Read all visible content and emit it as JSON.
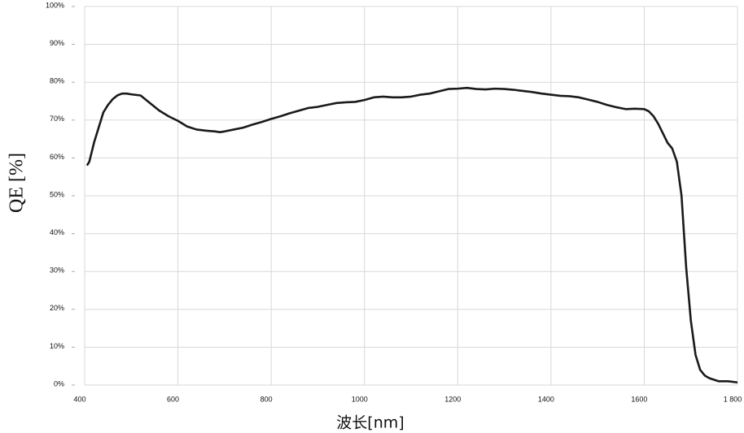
{
  "chart_data": {
    "type": "line",
    "x_label": "波长[nm]",
    "y_label": "QE [%]",
    "xlim": [
      400,
      1800
    ],
    "xticks": [
      400,
      600,
      800,
      1000,
      1200,
      1400,
      1600,
      {
        "value": 1800,
        "label": "1 800"
      }
    ],
    "ylim": [
      0,
      100
    ],
    "yticks": [
      {
        "value": 0,
        "label": "0%"
      },
      {
        "value": 10,
        "label": "10%"
      },
      {
        "value": 20,
        "label": "20%"
      },
      {
        "value": 30,
        "label": "30%"
      },
      {
        "value": 40,
        "label": "40%"
      },
      {
        "value": 50,
        "label": "50%"
      },
      {
        "value": 60,
        "label": "60%"
      },
      {
        "value": 70,
        "label": "70%"
      },
      {
        "value": 80,
        "label": "80%"
      },
      {
        "value": 90,
        "label": "90%"
      },
      {
        "value": 100,
        "label": "100%"
      }
    ],
    "grid": true,
    "x": [
      405,
      410,
      420,
      430,
      440,
      450,
      460,
      470,
      480,
      490,
      500,
      520,
      540,
      560,
      580,
      600,
      620,
      640,
      660,
      680,
      690,
      700,
      720,
      740,
      760,
      780,
      800,
      820,
      840,
      860,
      880,
      900,
      920,
      940,
      960,
      980,
      1000,
      1020,
      1040,
      1060,
      1080,
      1100,
      1120,
      1140,
      1160,
      1180,
      1200,
      1220,
      1240,
      1260,
      1280,
      1300,
      1320,
      1340,
      1360,
      1380,
      1400,
      1420,
      1440,
      1460,
      1480,
      1500,
      1520,
      1540,
      1560,
      1580,
      1600,
      1610,
      1620,
      1630,
      1640,
      1650,
      1660,
      1670,
      1680,
      1690,
      1700,
      1710,
      1720,
      1730,
      1740,
      1760,
      1780,
      1800
    ],
    "series": [
      {
        "color": "#1a1a1a",
        "values": [
          58,
          59,
          64,
          68,
          72,
          74,
          75.5,
          76.5,
          77,
          77,
          76.8,
          76.5,
          74.5,
          72.5,
          71,
          69.8,
          68.3,
          67.5,
          67.2,
          67,
          66.8,
          67,
          67.5,
          68,
          68.8,
          69.5,
          70.3,
          71,
          71.8,
          72.5,
          73.2,
          73.5,
          74,
          74.5,
          74.7,
          74.8,
          75.3,
          76,
          76.2,
          76,
          76,
          76.2,
          76.7,
          77,
          77.6,
          78.2,
          78.3,
          78.5,
          78.2,
          78.1,
          78.3,
          78.2,
          78,
          77.7,
          77.4,
          77,
          76.7,
          76.4,
          76.3,
          76,
          75.4,
          74.8,
          74,
          73.4,
          72.9,
          73,
          72.9,
          72.3,
          71,
          69,
          66.5,
          64,
          62.5,
          59,
          50,
          31,
          17,
          8,
          4,
          2.5,
          1.8,
          1,
          1,
          0.7
        ]
      }
    ]
  }
}
